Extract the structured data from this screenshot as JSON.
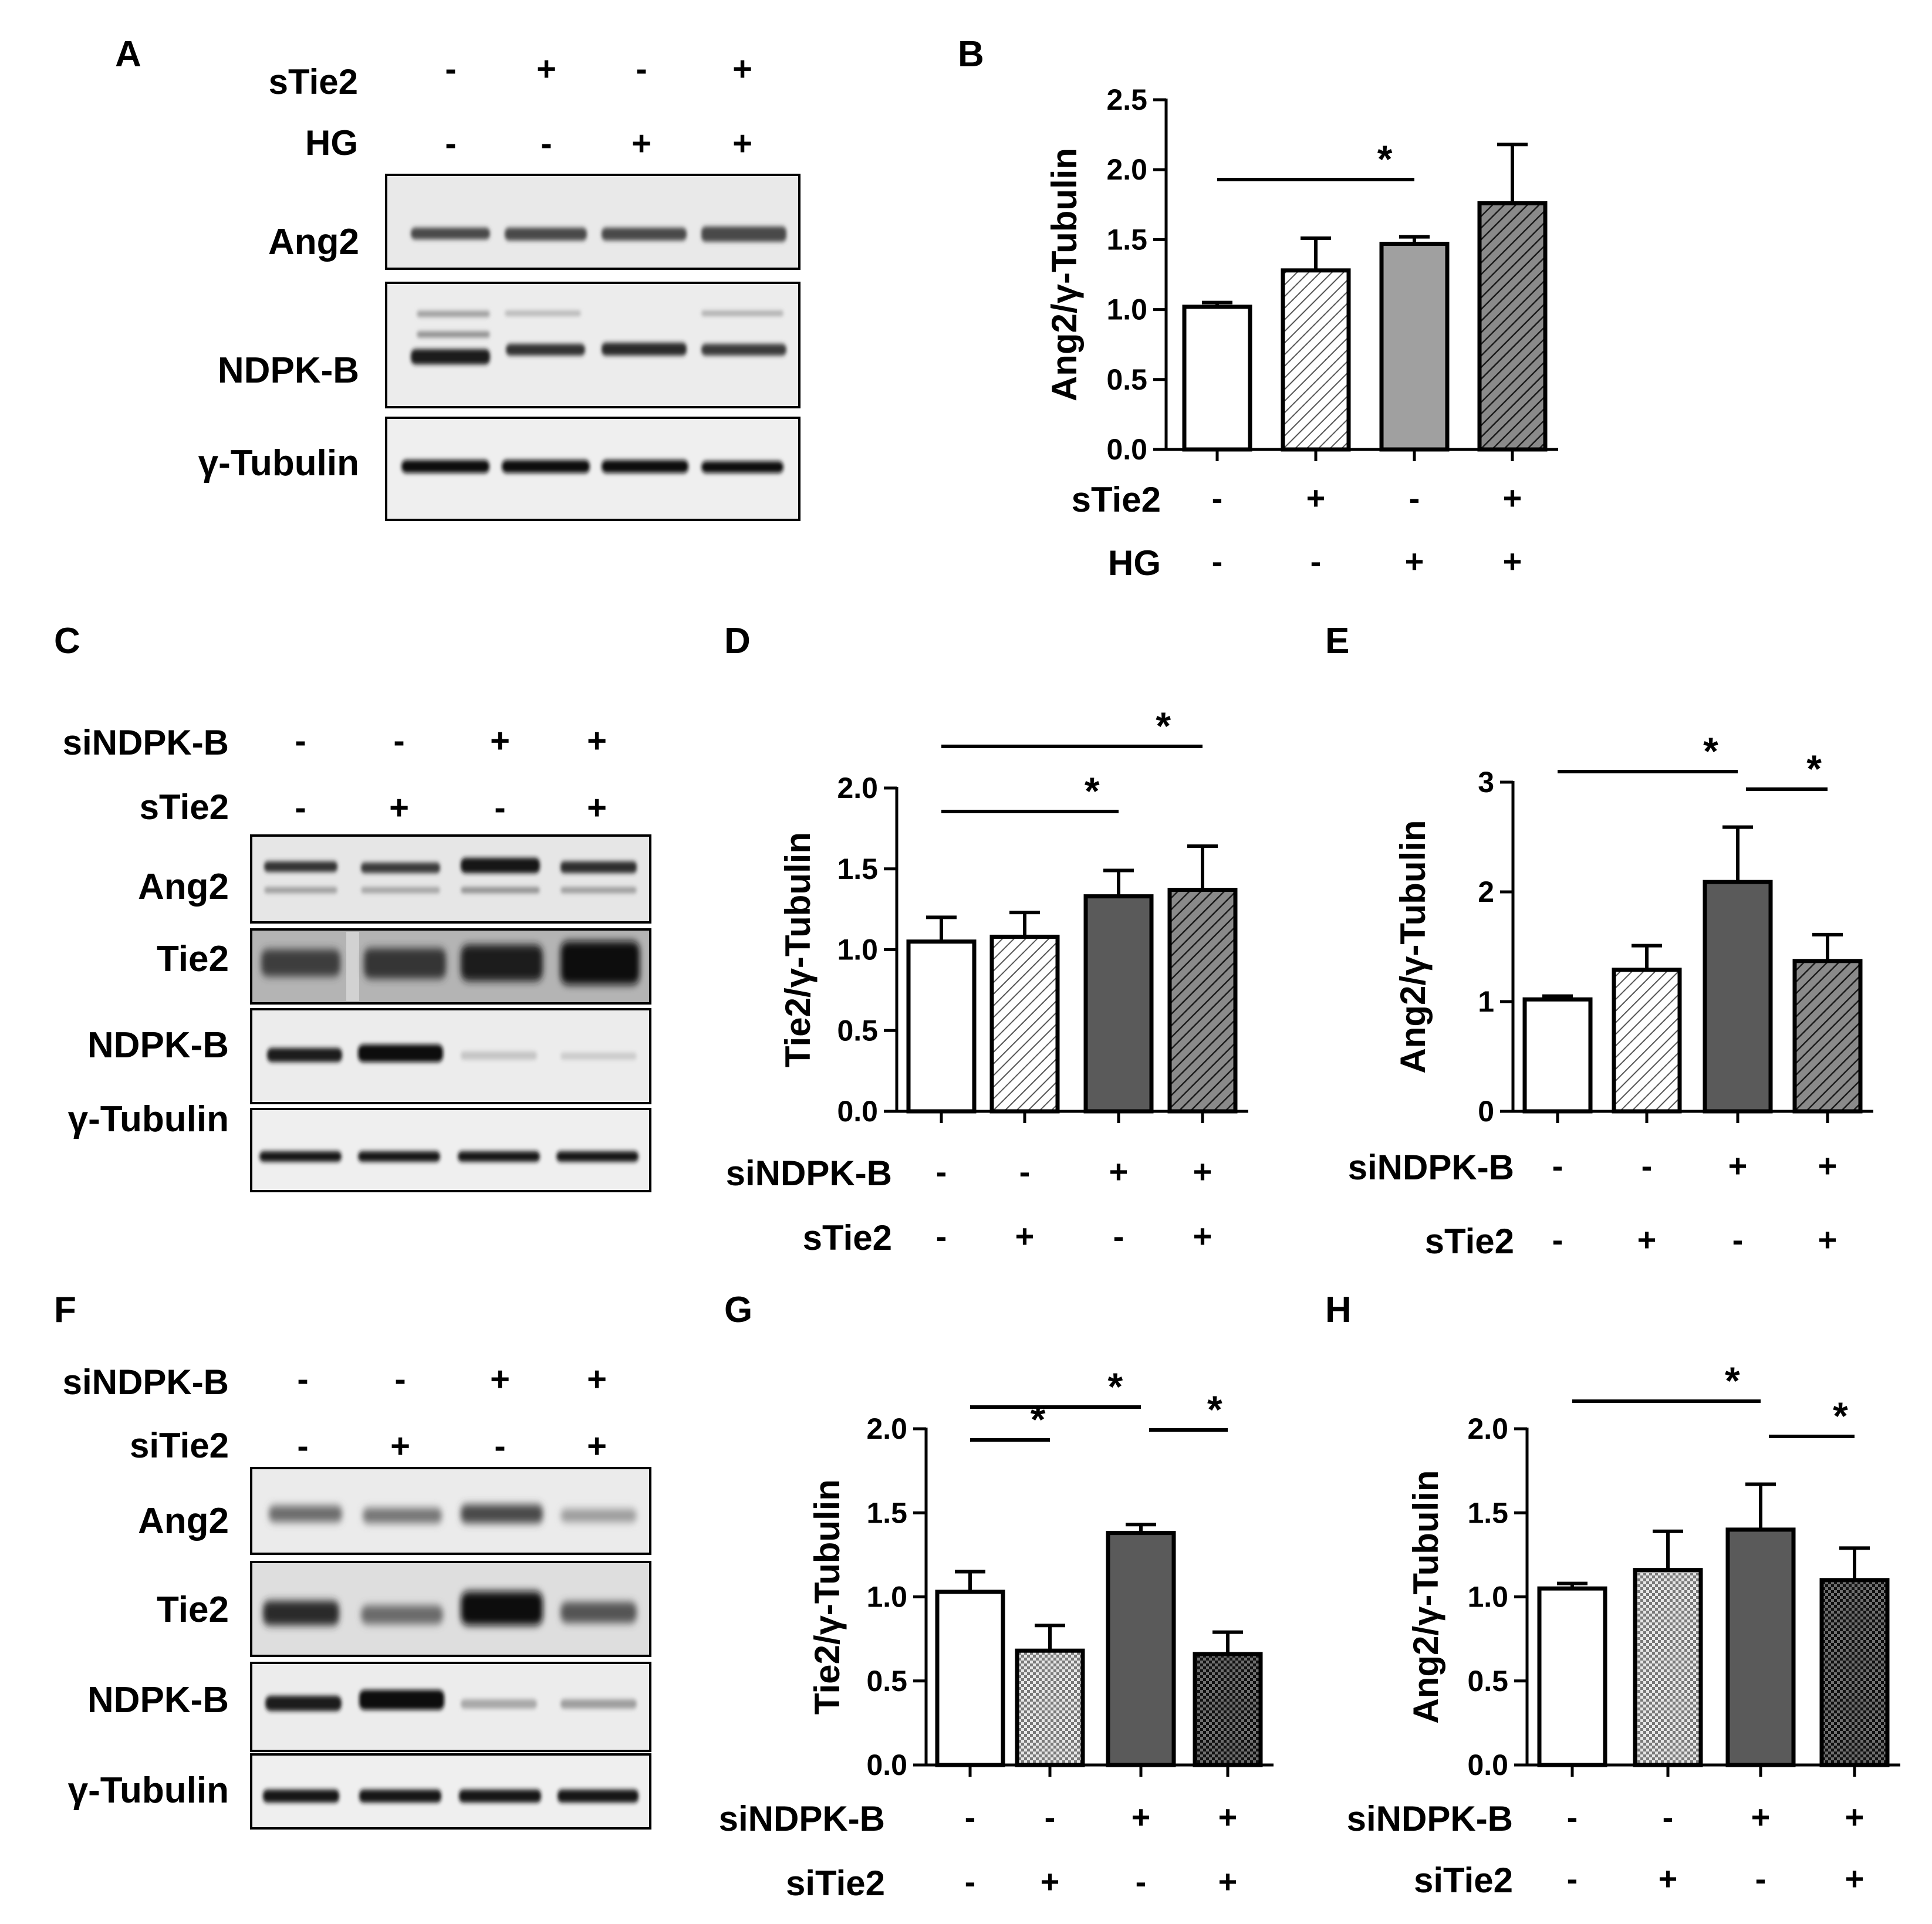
{
  "figure": {
    "panels": [
      "A",
      "B",
      "C",
      "D",
      "E",
      "F",
      "G",
      "H"
    ]
  },
  "blot_A": {
    "letter": "A",
    "conditions": [
      {
        "name": "sTie2",
        "values": [
          "-",
          "+",
          "-",
          "+"
        ]
      },
      {
        "name": "HG",
        "values": [
          "-",
          "-",
          "+",
          "+"
        ]
      }
    ],
    "bands": [
      "Ang2",
      "NDPK-B",
      "γ-Tubulin"
    ]
  },
  "blot_C": {
    "letter": "C",
    "conditions": [
      {
        "name": "siNDPK-B",
        "values": [
          "-",
          "-",
          "+",
          "+"
        ]
      },
      {
        "name": "sTie2",
        "values": [
          "-",
          "+",
          "-",
          "+"
        ]
      }
    ],
    "bands": [
      "Ang2",
      "Tie2",
      "NDPK-B",
      "γ-Tubulin"
    ]
  },
  "blot_F": {
    "letter": "F",
    "conditions": [
      {
        "name": "siNDPK-B",
        "values": [
          "-",
          "-",
          "+",
          "+"
        ]
      },
      {
        "name": "siTie2",
        "values": [
          "-",
          "+",
          "-",
          "+"
        ]
      }
    ],
    "bands": [
      "Ang2",
      "Tie2",
      "NDPK-B",
      "γ-Tubulin"
    ]
  },
  "chart_data": [
    {
      "panel": "B",
      "type": "bar",
      "ylabel": "Ang2/γ-Tubulin",
      "ylim": [
        0,
        2.5
      ],
      "yticks": [
        "0.0",
        "0.5",
        "1.0",
        "1.5",
        "2.0",
        "2.5"
      ],
      "values": [
        1.02,
        1.28,
        1.47,
        1.76
      ],
      "errors": [
        0.03,
        0.23,
        0.05,
        0.42
      ],
      "fills": [
        "white",
        "hatch-light",
        "gray",
        "hatch-dark"
      ],
      "conditions": [
        {
          "name": "sTie2",
          "values": [
            "-",
            "+",
            "-",
            "+"
          ]
        },
        {
          "name": "HG",
          "values": [
            "-",
            "-",
            "+",
            "+"
          ]
        }
      ],
      "significance": [
        {
          "bars": [
            0,
            2
          ],
          "level": 1,
          "label": "*"
        }
      ]
    },
    {
      "panel": "D",
      "type": "bar",
      "ylabel": "Tie2/γ-Tubulin",
      "ylim": [
        0,
        2.0
      ],
      "yticks": [
        "0.0",
        "0.5",
        "1.0",
        "1.5",
        "2.0"
      ],
      "values": [
        1.05,
        1.08,
        1.33,
        1.37
      ],
      "errors": [
        0.15,
        0.15,
        0.16,
        0.27
      ],
      "fills": [
        "white",
        "hatch-light",
        "darkgray",
        "hatch-dark"
      ],
      "conditions": [
        {
          "name": "siNDPK-B",
          "values": [
            "-",
            "-",
            "+",
            "+"
          ]
        },
        {
          "name": "sTie2",
          "values": [
            "-",
            "+",
            "-",
            "+"
          ]
        }
      ],
      "significance": [
        {
          "bars": [
            0,
            2
          ],
          "level": 1,
          "label": "*"
        },
        {
          "bars": [
            0,
            3
          ],
          "level": 2,
          "label": "*"
        }
      ]
    },
    {
      "panel": "E",
      "type": "bar",
      "ylabel": "Ang2/γ-Tubulin",
      "ylim": [
        0,
        3
      ],
      "yticks": [
        "0",
        "1",
        "2",
        "3"
      ],
      "values": [
        1.02,
        1.29,
        2.09,
        1.37
      ],
      "errors": [
        0.03,
        0.22,
        0.5,
        0.24
      ],
      "fills": [
        "white",
        "hatch-light",
        "darkgray",
        "hatch-dark"
      ],
      "conditions": [
        {
          "name": "siNDPK-B",
          "values": [
            "-",
            "-",
            "+",
            "+"
          ]
        },
        {
          "name": "sTie2",
          "values": [
            "-",
            "+",
            "-",
            "+"
          ]
        }
      ],
      "significance": [
        {
          "bars": [
            0,
            2
          ],
          "level": 1,
          "label": "*"
        },
        {
          "bars": [
            2,
            3
          ],
          "level": 1,
          "label": "*"
        }
      ]
    },
    {
      "panel": "G",
      "type": "bar",
      "ylabel": "Tie2/γ-Tubulin",
      "ylim": [
        0,
        2.0
      ],
      "yticks": [
        "0.0",
        "0.5",
        "1.0",
        "1.5",
        "2.0"
      ],
      "values": [
        1.03,
        0.68,
        1.38,
        0.66
      ],
      "errors": [
        0.12,
        0.15,
        0.05,
        0.13
      ],
      "fills": [
        "white",
        "check-light",
        "darkgray",
        "check-dark"
      ],
      "conditions": [
        {
          "name": "siNDPK-B",
          "values": [
            "-",
            "-",
            "+",
            "+"
          ]
        },
        {
          "name": "siTie2",
          "values": [
            "-",
            "+",
            "-",
            "+"
          ]
        }
      ],
      "significance": [
        {
          "bars": [
            0,
            1
          ],
          "level": 0,
          "label": "*"
        },
        {
          "bars": [
            0,
            2
          ],
          "level": 1,
          "label": "*"
        },
        {
          "bars": [
            2,
            3
          ],
          "level": 0,
          "label": "*"
        }
      ]
    },
    {
      "panel": "H",
      "type": "bar",
      "ylabel": "Ang2/γ-Tubulin",
      "ylim": [
        0,
        2.0
      ],
      "yticks": [
        "0.0",
        "0.5",
        "1.0",
        "1.5",
        "2.0"
      ],
      "values": [
        1.05,
        1.16,
        1.4,
        1.1
      ],
      "errors": [
        0.03,
        0.23,
        0.27,
        0.19
      ],
      "fills": [
        "white",
        "check-light",
        "darkgray",
        "check-dark"
      ],
      "conditions": [
        {
          "name": "siNDPK-B",
          "values": [
            "-",
            "-",
            "+",
            "+"
          ]
        },
        {
          "name": "siTie2",
          "values": [
            "-",
            "+",
            "-",
            "+"
          ]
        }
      ],
      "significance": [
        {
          "bars": [
            0,
            2
          ],
          "level": 1,
          "label": "*"
        },
        {
          "bars": [
            2,
            3
          ],
          "level": 0,
          "label": "*"
        }
      ]
    }
  ]
}
